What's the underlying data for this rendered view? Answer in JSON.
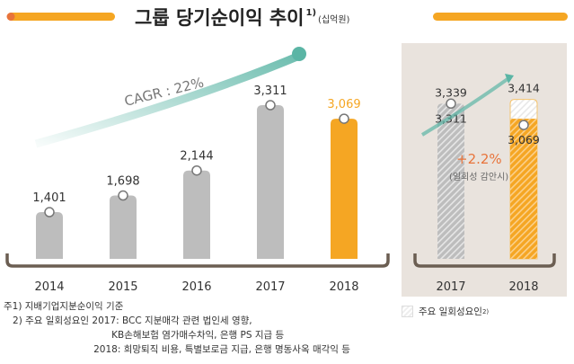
{
  "title": "그룹 당기순이익 추이",
  "title_sup": "1)",
  "unit": "(십억원)",
  "colors": {
    "accent": "#f5a623",
    "gray": "#bdbdbd",
    "teal": "#5bb5a5",
    "bracket": "#6b5e52",
    "panel": "#e9e3dd",
    "growth": "#e8743b"
  },
  "chart_data": [
    {
      "type": "bar",
      "categories": [
        "2014",
        "2015",
        "2016",
        "2017",
        "2018"
      ],
      "values": [
        1401,
        1698,
        2144,
        3311,
        3069
      ],
      "labels": [
        "1,401",
        "1,698",
        "2,144",
        "3,311",
        "3,069"
      ],
      "highlight": "2018",
      "annotation": "CAGR : 22%"
    },
    {
      "type": "bar",
      "categories": [
        "2017",
        "2018"
      ],
      "values": [
        3311,
        3069
      ],
      "with_one_off": [
        3339,
        3414
      ],
      "labels": [
        "3,311",
        "3,069"
      ],
      "one_off_labels": [
        "3,339",
        "3,414"
      ],
      "growth_label": "+2.2%",
      "growth_note": "(일회성 감안시)",
      "legend": "주요 일회성요인",
      "legend_sup": "2)"
    }
  ],
  "notes": [
    "주1) 지배기업지분순이익 기준",
    "   2) 주요 일회성요인 2017: BCC 지분매각 관련 법인세 영향,",
    "                                    KB손해보험 염가매수차익, 은행 PS 지급 등",
    "                              2018: 희망퇴직 비용, 특별보로금 지급, 은행 명동사옥 매각익 등"
  ]
}
